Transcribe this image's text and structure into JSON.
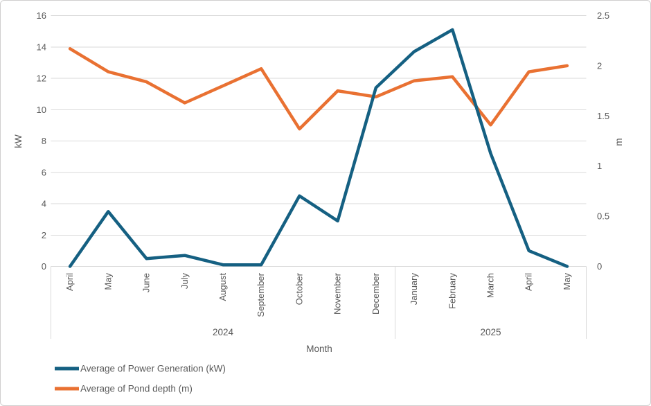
{
  "chart_data": {
    "type": "line",
    "x_axis_title": "Month",
    "grid": true,
    "legend_position": "bottom-left",
    "y_left": {
      "label": "kW",
      "min": 0,
      "max": 16,
      "step": 2,
      "ticks": [
        "0",
        "2",
        "4",
        "6",
        "8",
        "10",
        "12",
        "14",
        "16"
      ]
    },
    "y_right": {
      "label": "m",
      "min": 0,
      "max": 2.5,
      "step": 0.5,
      "ticks": [
        "0",
        "0.5",
        "1",
        "1.5",
        "2",
        "2.5"
      ]
    },
    "categories": [
      "April",
      "May",
      "June",
      "July",
      "August",
      "September",
      "October",
      "November",
      "December",
      "January",
      "February",
      "March",
      "April",
      "May"
    ],
    "x_groups": [
      {
        "year": "2024",
        "span": 9
      },
      {
        "year": "2025",
        "span": 5
      }
    ],
    "series": [
      {
        "name": "Average of Power Generation (kW)",
        "axis": "left",
        "color": "#156082",
        "values": [
          0,
          3.5,
          0.5,
          0.7,
          0.1,
          0.1,
          4.5,
          2.9,
          11.4,
          13.7,
          15.1,
          7.2,
          1.0,
          0
        ]
      },
      {
        "name": "Average of Pond depth (m)",
        "axis": "right",
        "color": "#E97132",
        "values": [
          2.17,
          1.94,
          1.84,
          1.63,
          1.8,
          1.97,
          1.37,
          1.75,
          1.69,
          1.85,
          1.89,
          1.41,
          1.94,
          2.0
        ]
      }
    ]
  },
  "colors": {
    "text": "#595959",
    "gridline": "#d9d9d9",
    "axis_boundary": "#d9d9d9",
    "background": "#ffffff",
    "border": "#cfcece"
  }
}
